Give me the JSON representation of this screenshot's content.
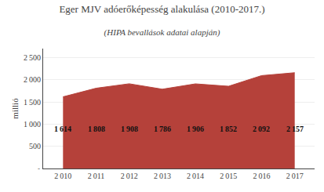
{
  "chart_data": {
    "type": "area",
    "title": "Eger MJV adóerőképesség alakulása (2010-2017.)",
    "subtitle": "(HIPA bevallások adatai alapján)",
    "x": [
      2010,
      2011,
      2012,
      2013,
      2014,
      2015,
      2016,
      2017
    ],
    "values": [
      1614,
      1808,
      1908,
      1786,
      1906,
      1852,
      2092,
      2157
    ],
    "value_labels": [
      "1 614",
      "1 808",
      "1 908",
      "1 786",
      "1 906",
      "1 852",
      "2 092",
      "2 157"
    ],
    "data_labels": true,
    "color": "#b5413a",
    "xlim": [
      2009.4,
      2017.6
    ],
    "xticks": [
      {
        "value": 2010,
        "label": "2 010"
      },
      {
        "value": 2011,
        "label": "2 011"
      },
      {
        "value": 2012,
        "label": "2 012"
      },
      {
        "value": 2013,
        "label": "2 013"
      },
      {
        "value": 2014,
        "label": "2 014"
      },
      {
        "value": 2015,
        "label": "2 015"
      },
      {
        "value": 2016,
        "label": "2 016"
      },
      {
        "value": 2017,
        "label": "2 017"
      }
    ],
    "ylim": [
      0,
      2700
    ],
    "yticks": [
      500,
      {
        "value": 1000,
        "label": "1 000"
      },
      {
        "value": 1500,
        "label": "1 500"
      },
      {
        "value": 2000,
        "label": "2 000"
      },
      {
        "value": 2500,
        "label": "2 500"
      }
    ],
    "ylabel": "millió",
    "grid": true,
    "annotations": [
      "-"
    ]
  }
}
